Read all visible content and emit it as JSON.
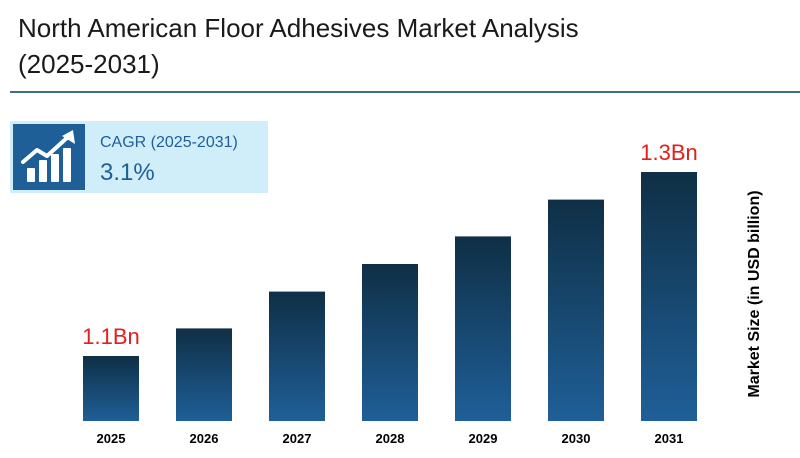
{
  "title": "North American Floor Adhesives Market Analysis (2025-2031)",
  "cagr": {
    "label": "CAGR (2025-2031)",
    "value": "3.1%",
    "icon": "growth-chart-icon"
  },
  "colors": {
    "bar_top": "#0f2f45",
    "bar_bottom": "#1f5f98",
    "highlight": "#e0201b",
    "rule": "#3d6f86"
  },
  "chart_data": {
    "type": "bar",
    "categories": [
      "2025",
      "2026",
      "2027",
      "2028",
      "2029",
      "2030",
      "2031"
    ],
    "values": [
      1.1,
      1.13,
      1.17,
      1.2,
      1.23,
      1.27,
      1.3
    ],
    "data_labels": [
      "1.1Bn",
      "",
      "",
      "",
      "",
      "",
      "1.3Bn"
    ],
    "ylabel": "Market Size (in USD billion)",
    "xlabel": "",
    "grid": false,
    "legend": "none"
  }
}
